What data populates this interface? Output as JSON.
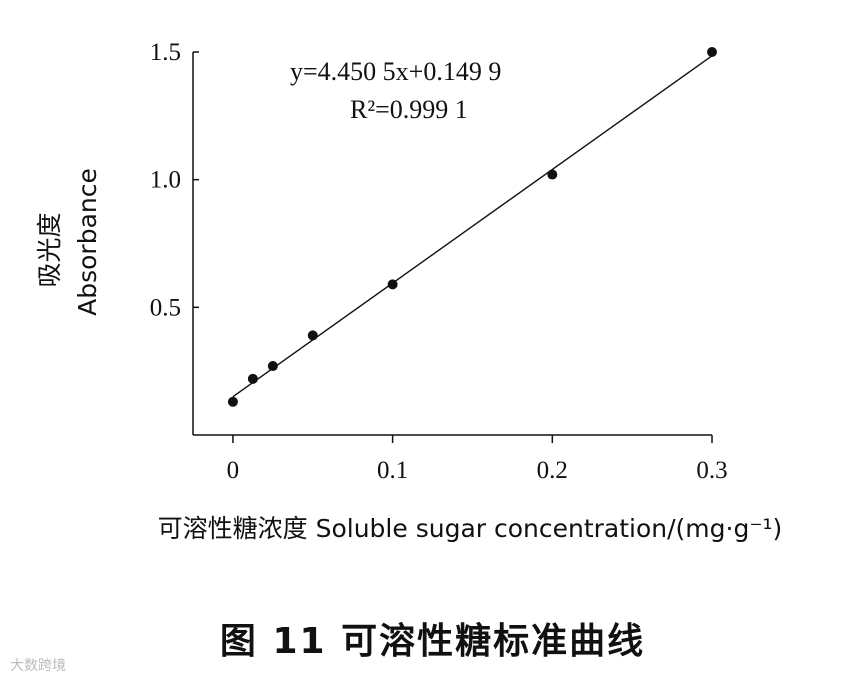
{
  "chart_data": {
    "type": "scatter",
    "xlabel": "可溶性糖浓度 Soluble sugar concentration/(mg·g⁻¹)",
    "ylabel_cn": "吸光度",
    "ylabel_en": "Absorbance",
    "x": [
      0,
      0.0125,
      0.025,
      0.05,
      0.1,
      0.2,
      0.3
    ],
    "y": [
      0.13,
      0.22,
      0.27,
      0.39,
      0.59,
      1.02,
      1.5
    ],
    "xlim": [
      -0.025,
      0.3
    ],
    "ylim": [
      0,
      1.5
    ],
    "x_ticks": [
      0,
      0.1,
      0.2,
      0.3
    ],
    "x_tick_labels": [
      "0",
      "0.1",
      "0.2",
      "0.3"
    ],
    "y_ticks": [
      0.5,
      1.0,
      1.5
    ],
    "y_tick_labels": [
      "0.5",
      "1.0",
      "1.5"
    ],
    "fit": {
      "slope": 4.4505,
      "intercept": 0.1499,
      "x_range": [
        0,
        0.3
      ]
    },
    "equation": "y=4.450 5x+0.149 9",
    "r_squared": "R²=0.999 1",
    "grid": false,
    "legend": "none"
  },
  "caption": "图 11    可溶性糖标准曲线",
  "watermark": "大数跨境"
}
